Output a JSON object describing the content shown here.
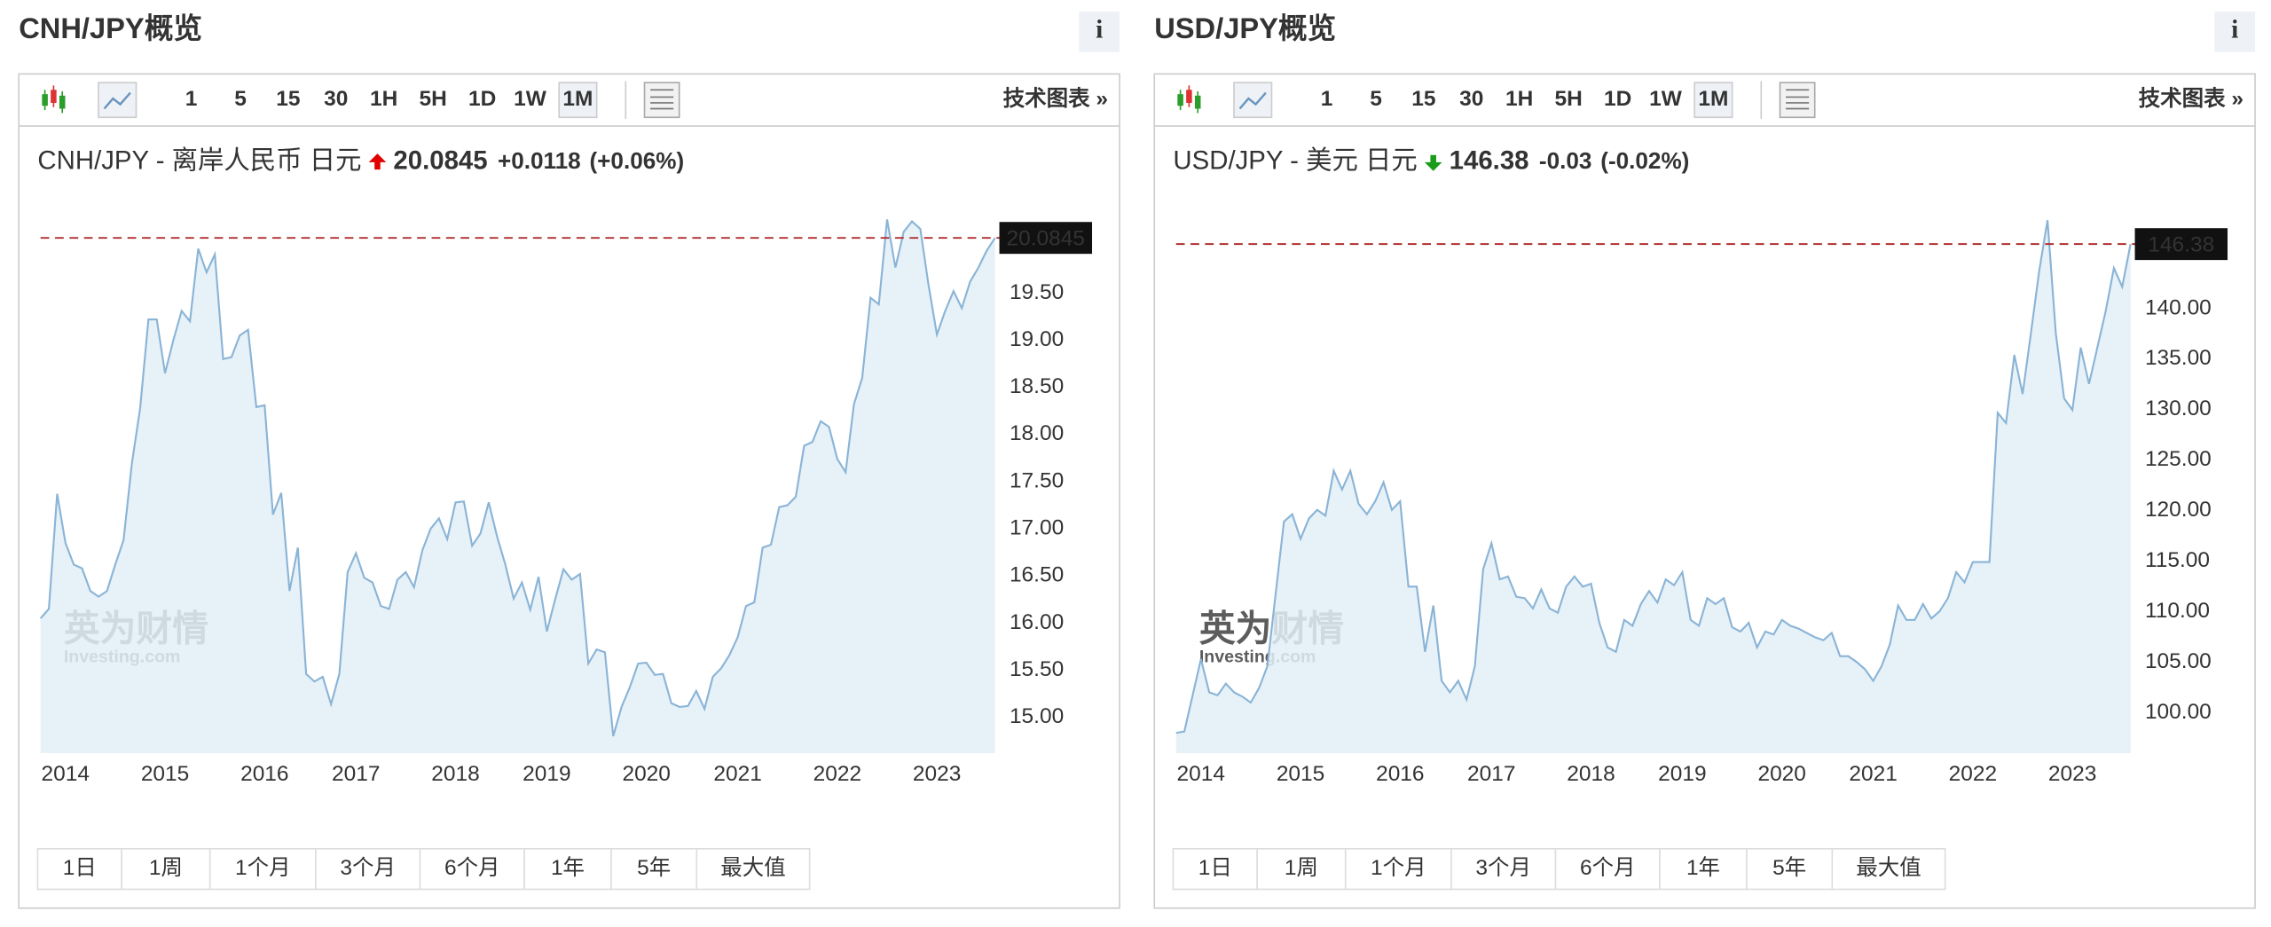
{
  "panels": [
    {
      "title": "CNH/JPY概览",
      "info": "i",
      "intervals": [
        "1",
        "5",
        "15",
        "30",
        "1H",
        "5H",
        "1D",
        "1W",
        "1M"
      ],
      "selected": "1M",
      "tech_chart": "技术图表 »",
      "quote": {
        "pair": "CNH/JPY - 离岸人民币 日元",
        "price": "20.0845",
        "change": "+0.0118",
        "change_pct": "(+0.06%)",
        "direction": "up"
      },
      "watermark": {
        "brand": "英为财情",
        "site": "Investing.com"
      },
      "ranges": [
        "1日",
        "1周",
        "1个月",
        "3个月",
        "6个月",
        "1年",
        "5年",
        "最大值"
      ]
    },
    {
      "title": "USD/JPY概览",
      "info": "i",
      "intervals": [
        "1",
        "5",
        "15",
        "30",
        "1H",
        "5H",
        "1D",
        "1W",
        "1M"
      ],
      "selected": "1M",
      "tech_chart": "技术图表 »",
      "quote": {
        "pair": "USD/JPY - 美元 日元",
        "price": "146.38",
        "change": "-0.03",
        "change_pct": "(-0.02%)",
        "direction": "down"
      },
      "watermark": {
        "brand": "英为财情",
        "site": "Investing.com"
      },
      "ranges": [
        "1日",
        "1周",
        "1个月",
        "3个月",
        "6个月",
        "1年",
        "5年",
        "最大值"
      ]
    }
  ],
  "chart_data": [
    {
      "type": "area",
      "color": "#8ab4d6",
      "fill": "#e3eef7",
      "categories": [
        null,
        null,
        null,
        "2014",
        null,
        null,
        null,
        null,
        null,
        null,
        null,
        null,
        null,
        null,
        null,
        "2015",
        null,
        null,
        null,
        null,
        null,
        null,
        null,
        null,
        null,
        null,
        null,
        "2016",
        null,
        null,
        null,
        null,
        null,
        null,
        null,
        null,
        null,
        null,
        "2017",
        null,
        null,
        null,
        null,
        null,
        null,
        null,
        null,
        null,
        null,
        null,
        "2018",
        null,
        null,
        null,
        null,
        null,
        null,
        null,
        null,
        null,
        null,
        "2019",
        null,
        null,
        null,
        null,
        null,
        null,
        null,
        null,
        null,
        null,
        null,
        "2020",
        null,
        null,
        null,
        null,
        null,
        null,
        null,
        null,
        null,
        null,
        "2021",
        null,
        null,
        null,
        null,
        null,
        null,
        null,
        null,
        null,
        null,
        null,
        "2022",
        null,
        null,
        null,
        null,
        null,
        null,
        null,
        null,
        null,
        null,
        null,
        "2023",
        null,
        null,
        null,
        null,
        null,
        null,
        null
      ],
      "values": [
        16.05,
        16.15,
        17.37,
        16.85,
        16.62,
        16.58,
        16.34,
        16.28,
        16.34,
        16.62,
        16.88,
        17.69,
        18.28,
        19.22,
        19.22,
        18.65,
        19.0,
        19.31,
        19.2,
        19.97,
        19.72,
        19.91,
        18.8,
        18.82,
        19.05,
        19.11,
        18.29,
        18.31,
        17.15,
        17.38,
        16.34,
        16.8,
        15.46,
        15.38,
        15.43,
        15.14,
        15.46,
        16.54,
        16.74,
        16.48,
        16.43,
        16.18,
        16.15,
        16.46,
        16.54,
        16.38,
        16.77,
        17.0,
        17.11,
        16.89,
        17.28,
        17.29,
        16.82,
        16.95,
        17.28,
        16.92,
        16.62,
        16.26,
        16.43,
        16.14,
        16.49,
        15.91,
        16.25,
        16.57,
        16.46,
        16.52,
        15.57,
        15.72,
        15.69,
        14.8,
        15.11,
        15.32,
        15.57,
        15.58,
        15.45,
        15.46,
        15.15,
        15.11,
        15.12,
        15.28,
        15.09,
        15.43,
        15.52,
        15.66,
        15.85,
        16.18,
        16.22,
        16.8,
        16.83,
        17.23,
        17.25,
        17.34,
        17.88,
        17.92,
        18.14,
        18.08,
        17.74,
        17.6,
        18.32,
        18.6,
        19.45,
        19.38,
        20.28,
        19.77,
        20.15,
        20.26,
        20.18,
        19.58,
        19.06,
        19.31,
        19.52,
        19.34,
        19.62,
        19.77,
        19.95,
        20.0845
      ],
      "ylim": [
        14.62,
        20.38
      ],
      "yticks": [
        {
          "value": 15,
          "label": "15.00"
        },
        {
          "value": 15.5,
          "label": "15.50"
        },
        {
          "value": 16,
          "label": "16.00"
        },
        {
          "value": 16.5,
          "label": "16.50"
        },
        {
          "value": 17,
          "label": "17.00"
        },
        {
          "value": 17.5,
          "label": "17.50"
        },
        {
          "value": 18,
          "label": "18.00"
        },
        {
          "value": 18.5,
          "label": "18.50"
        },
        {
          "value": 19,
          "label": "19.00"
        },
        {
          "value": 19.5,
          "label": "19.50"
        }
      ]
    },
    {
      "type": "area",
      "color": "#8ab4d6",
      "fill": "#e3eef7",
      "categories": [
        null,
        null,
        null,
        "2014",
        null,
        null,
        null,
        null,
        null,
        null,
        null,
        null,
        null,
        null,
        null,
        "2015",
        null,
        null,
        null,
        null,
        null,
        null,
        null,
        null,
        null,
        null,
        null,
        "2016",
        null,
        null,
        null,
        null,
        null,
        null,
        null,
        null,
        null,
        null,
        "2017",
        null,
        null,
        null,
        null,
        null,
        null,
        null,
        null,
        null,
        null,
        null,
        "2018",
        null,
        null,
        null,
        null,
        null,
        null,
        null,
        null,
        null,
        null,
        "2019",
        null,
        null,
        null,
        null,
        null,
        null,
        null,
        null,
        null,
        null,
        null,
        "2020",
        null,
        null,
        null,
        null,
        null,
        null,
        null,
        null,
        null,
        null,
        "2021",
        null,
        null,
        null,
        null,
        null,
        null,
        null,
        null,
        null,
        null,
        null,
        "2022",
        null,
        null,
        null,
        null,
        null,
        null,
        null,
        null,
        null,
        null,
        null,
        "2023",
        null,
        null,
        null,
        null,
        null,
        null,
        null
      ],
      "values": [
        97.99,
        98.14,
        101.72,
        105.3,
        102.01,
        101.72,
        102.87,
        102.01,
        101.58,
        101.0,
        102.44,
        104.59,
        111.76,
        118.92,
        119.64,
        117.2,
        119.21,
        120.07,
        119.5,
        123.94,
        122.08,
        123.94,
        120.65,
        119.64,
        120.93,
        122.8,
        120.07,
        120.93,
        112.47,
        112.47,
        106.02,
        110.61,
        103.15,
        102.01,
        103.15,
        101.29,
        104.59,
        114.19,
        116.77,
        113.19,
        113.48,
        111.47,
        111.33,
        110.32,
        112.19,
        110.32,
        109.89,
        112.47,
        113.48,
        112.47,
        112.76,
        108.89,
        106.45,
        106.02,
        109.18,
        108.6,
        110.75,
        112.04,
        110.9,
        113.19,
        112.62,
        113.91,
        109.18,
        108.6,
        111.33,
        110.75,
        111.33,
        108.46,
        108.03,
        108.89,
        106.45,
        108.03,
        107.74,
        109.18,
        108.6,
        108.32,
        107.89,
        107.46,
        107.17,
        107.89,
        105.59,
        105.59,
        105.02,
        104.3,
        103.15,
        104.59,
        106.74,
        110.61,
        109.18,
        109.18,
        110.75,
        109.32,
        110.04,
        111.33,
        113.91,
        112.9,
        114.91,
        114.91,
        114.91,
        129.68,
        128.67,
        135.41,
        131.54,
        137.56,
        143.73,
        148.75,
        137.56,
        131.11,
        129.96,
        136.13,
        132.54,
        136.13,
        139.71,
        144.01,
        142.15,
        146.38
      ],
      "ylim": [
        95.99,
        149.75
      ],
      "yticks": [
        {
          "value": 100,
          "label": "100.00"
        },
        {
          "value": 105,
          "label": "105.00"
        },
        {
          "value": 110,
          "label": "110.00"
        },
        {
          "value": 115,
          "label": "115.00"
        },
        {
          "value": 120,
          "label": "120.00"
        },
        {
          "value": 125,
          "label": "125.00"
        },
        {
          "value": 130,
          "label": "130.00"
        },
        {
          "value": 135,
          "label": "135.00"
        },
        {
          "value": 140,
          "label": "140.00"
        }
      ]
    }
  ]
}
